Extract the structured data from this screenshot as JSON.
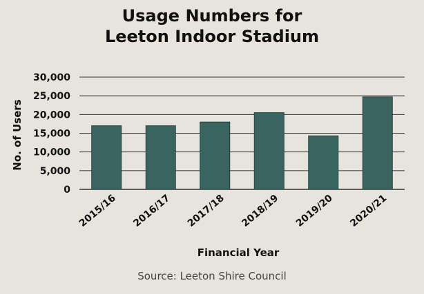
{
  "chart_data": {
    "type": "bar",
    "title_lines": [
      "Usage Numbers for",
      "Leeton Indoor Stadium"
    ],
    "xlabel": "Financial Year",
    "ylabel": "No. of Users",
    "categories": [
      "2015/16",
      "2016/17",
      "2017/18",
      "2018/19",
      "2019/20",
      "2020/21"
    ],
    "values": [
      17000,
      17000,
      18000,
      20500,
      14300,
      24700
    ],
    "ylim": [
      0,
      30000
    ],
    "yticks": [
      0,
      5000,
      10000,
      15000,
      20000,
      25000,
      30000
    ],
    "ytick_labels": [
      "0",
      "5,000",
      "10,000",
      "15,000",
      "20,000",
      "25,000",
      "30,000"
    ],
    "grid": true,
    "bar_color": "#3a6460",
    "source": "Source: Leeton Shire Council"
  }
}
